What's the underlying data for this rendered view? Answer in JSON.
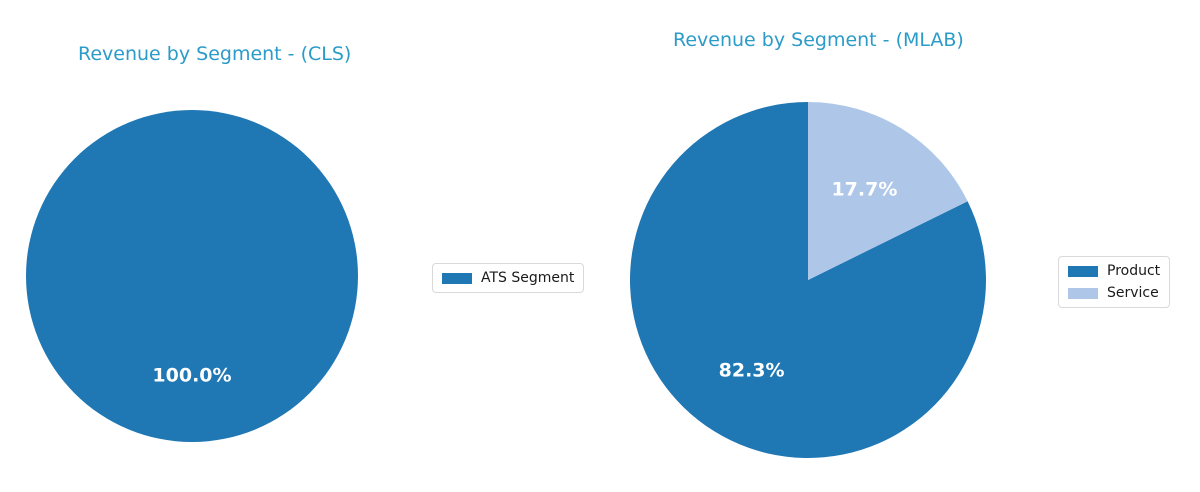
{
  "page": {
    "background": "#ffffff"
  },
  "chart_data": [
    {
      "type": "pie",
      "title": "Revenue by Segment - (CLS)",
      "title_color": "#2b9bc8",
      "start_angle": 90,
      "direction": "counterclockwise",
      "legend_position": "center right",
      "pct_label_color": "#ffffff",
      "slices": [
        {
          "label": "ATS Segment",
          "value": 100.0,
          "pct_label": "100.0%",
          "color": "#1f77b4"
        }
      ]
    },
    {
      "type": "pie",
      "title": "Revenue by Segment - (MLAB)",
      "title_color": "#2b9bc8",
      "start_angle": 90,
      "direction": "counterclockwise",
      "legend_position": "center right",
      "pct_label_color": "#ffffff",
      "slices": [
        {
          "label": "Product",
          "value": 82.3,
          "pct_label": "82.3%",
          "color": "#1f77b4"
        },
        {
          "label": "Service",
          "value": 17.7,
          "pct_label": "17.7%",
          "color": "#aec7e8"
        }
      ]
    }
  ]
}
